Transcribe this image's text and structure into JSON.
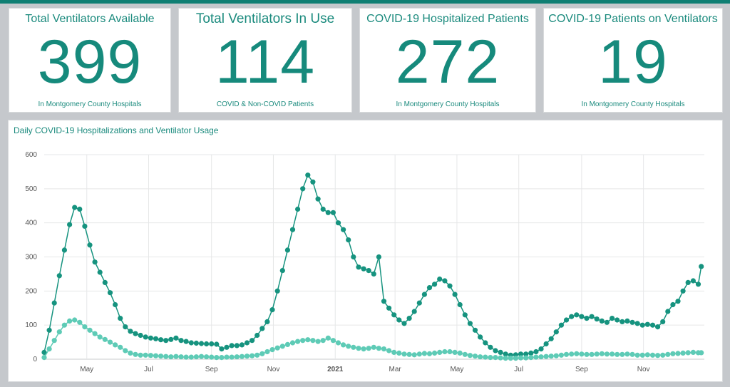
{
  "kpis": [
    {
      "title": "Total Ventilators Available",
      "value": "399",
      "subtitle": "In Montgomery County Hospitals"
    },
    {
      "title": "Total Ventilators In Use",
      "value": "114",
      "subtitle": "COVID & Non-COVID Patients"
    },
    {
      "title": "COVID-19 Hospitalized Patients",
      "value": "272",
      "subtitle": "In Montgomery County Hospitals"
    },
    {
      "title": "COVID-19 Patients on Ventilators",
      "value": "19",
      "subtitle": "In Montgomery County Hospitals"
    }
  ],
  "colors": {
    "accent": "#168a7c",
    "series_hospitalized": "#16937f",
    "series_ventilators": "#5ecbb6"
  },
  "chart_data": {
    "type": "line",
    "title": "Daily COVID-19 Hospitalizations and Ventilator Usage",
    "xlabel": "",
    "ylabel": "",
    "x_ticks": [
      "May",
      "Jul",
      "Sep",
      "Nov",
      "2021",
      "Mar",
      "May",
      "Jul",
      "Sep",
      "Nov"
    ],
    "y_ticks": [
      0,
      100,
      200,
      300,
      400,
      500,
      600
    ],
    "ylim": [
      0,
      600
    ],
    "xlim": [
      "2020-03-20",
      "2021-12-31"
    ],
    "grid": true,
    "legend": "none",
    "series": [
      {
        "points": [
          [
            "2020-03-20",
            20
          ],
          [
            "2020-03-25",
            85
          ],
          [
            "2020-03-30",
            165
          ],
          [
            "2020-04-04",
            245
          ],
          [
            "2020-04-09",
            320
          ],
          [
            "2020-04-14",
            395
          ],
          [
            "2020-04-19",
            445
          ],
          [
            "2020-04-24",
            440
          ],
          [
            "2020-04-29",
            390
          ],
          [
            "2020-05-04",
            335
          ],
          [
            "2020-05-09",
            285
          ],
          [
            "2020-05-14",
            255
          ],
          [
            "2020-05-19",
            225
          ],
          [
            "2020-05-24",
            195
          ],
          [
            "2020-05-29",
            160
          ],
          [
            "2020-06-03",
            120
          ],
          [
            "2020-06-08",
            95
          ],
          [
            "2020-06-13",
            82
          ],
          [
            "2020-06-18",
            75
          ],
          [
            "2020-06-23",
            70
          ],
          [
            "2020-06-28",
            65
          ],
          [
            "2020-07-03",
            62
          ],
          [
            "2020-07-08",
            60
          ],
          [
            "2020-07-13",
            57
          ],
          [
            "2020-07-18",
            55
          ],
          [
            "2020-07-23",
            58
          ],
          [
            "2020-07-28",
            62
          ],
          [
            "2020-08-02",
            55
          ],
          [
            "2020-08-07",
            52
          ],
          [
            "2020-08-12",
            48
          ],
          [
            "2020-08-17",
            47
          ],
          [
            "2020-08-22",
            46
          ],
          [
            "2020-08-27",
            45
          ],
          [
            "2020-09-01",
            45
          ],
          [
            "2020-09-06",
            44
          ],
          [
            "2020-09-11",
            30
          ],
          [
            "2020-09-16",
            35
          ],
          [
            "2020-09-21",
            40
          ],
          [
            "2020-09-26",
            40
          ],
          [
            "2020-10-01",
            42
          ],
          [
            "2020-10-06",
            48
          ],
          [
            "2020-10-11",
            55
          ],
          [
            "2020-10-16",
            70
          ],
          [
            "2020-10-21",
            90
          ],
          [
            "2020-10-26",
            110
          ],
          [
            "2020-10-31",
            145
          ],
          [
            "2020-11-05",
            200
          ],
          [
            "2020-11-10",
            260
          ],
          [
            "2020-11-15",
            320
          ],
          [
            "2020-11-20",
            380
          ],
          [
            "2020-11-25",
            440
          ],
          [
            "2020-11-30",
            500
          ],
          [
            "2020-12-05",
            540
          ],
          [
            "2020-12-10",
            520
          ],
          [
            "2020-12-15",
            470
          ],
          [
            "2020-12-20",
            440
          ],
          [
            "2020-12-25",
            430
          ],
          [
            "2020-12-30",
            430
          ],
          [
            "2021-01-04",
            400
          ],
          [
            "2021-01-09",
            380
          ],
          [
            "2021-01-14",
            350
          ],
          [
            "2021-01-19",
            300
          ],
          [
            "2021-01-24",
            270
          ],
          [
            "2021-01-29",
            265
          ],
          [
            "2021-02-03",
            260
          ],
          [
            "2021-02-08",
            250
          ],
          [
            "2021-02-13",
            300
          ],
          [
            "2021-02-18",
            170
          ],
          [
            "2021-02-23",
            150
          ],
          [
            "2021-02-28",
            130
          ],
          [
            "2021-03-05",
            115
          ],
          [
            "2021-03-10",
            105
          ],
          [
            "2021-03-15",
            120
          ],
          [
            "2021-03-20",
            140
          ],
          [
            "2021-03-25",
            165
          ],
          [
            "2021-03-30",
            190
          ],
          [
            "2021-04-04",
            210
          ],
          [
            "2021-04-09",
            220
          ],
          [
            "2021-04-14",
            235
          ],
          [
            "2021-04-19",
            230
          ],
          [
            "2021-04-24",
            215
          ],
          [
            "2021-04-29",
            190
          ],
          [
            "2021-05-04",
            160
          ],
          [
            "2021-05-09",
            130
          ],
          [
            "2021-05-14",
            105
          ],
          [
            "2021-05-19",
            85
          ],
          [
            "2021-05-24",
            65
          ],
          [
            "2021-05-29",
            48
          ],
          [
            "2021-06-03",
            35
          ],
          [
            "2021-06-08",
            25
          ],
          [
            "2021-06-13",
            20
          ],
          [
            "2021-06-18",
            15
          ],
          [
            "2021-06-23",
            12
          ],
          [
            "2021-06-28",
            13
          ],
          [
            "2021-07-03",
            15
          ],
          [
            "2021-07-08",
            15
          ],
          [
            "2021-07-13",
            18
          ],
          [
            "2021-07-18",
            22
          ],
          [
            "2021-07-23",
            30
          ],
          [
            "2021-07-28",
            45
          ],
          [
            "2021-08-02",
            60
          ],
          [
            "2021-08-07",
            80
          ],
          [
            "2021-08-12",
            100
          ],
          [
            "2021-08-17",
            115
          ],
          [
            "2021-08-22",
            125
          ],
          [
            "2021-08-27",
            130
          ],
          [
            "2021-09-01",
            125
          ],
          [
            "2021-09-06",
            120
          ],
          [
            "2021-09-11",
            125
          ],
          [
            "2021-09-16",
            118
          ],
          [
            "2021-09-21",
            112
          ],
          [
            "2021-09-26",
            108
          ],
          [
            "2021-10-01",
            120
          ],
          [
            "2021-10-06",
            115
          ],
          [
            "2021-10-11",
            110
          ],
          [
            "2021-10-16",
            112
          ],
          [
            "2021-10-21",
            108
          ],
          [
            "2021-10-26",
            105
          ],
          [
            "2021-10-31",
            100
          ],
          [
            "2021-11-05",
            102
          ],
          [
            "2021-11-10",
            100
          ],
          [
            "2021-11-15",
            95
          ],
          [
            "2021-11-20",
            110
          ],
          [
            "2021-11-25",
            140
          ],
          [
            "2021-11-30",
            160
          ],
          [
            "2021-12-05",
            170
          ],
          [
            "2021-12-10",
            200
          ],
          [
            "2021-12-15",
            225
          ],
          [
            "2021-12-20",
            230
          ],
          [
            "2021-12-25",
            220
          ],
          [
            "2021-12-28",
            272
          ]
        ]
      },
      {
        "points": [
          [
            "2020-03-20",
            5
          ],
          [
            "2020-03-25",
            30
          ],
          [
            "2020-03-30",
            55
          ],
          [
            "2020-04-04",
            80
          ],
          [
            "2020-04-09",
            100
          ],
          [
            "2020-04-14",
            112
          ],
          [
            "2020-04-19",
            115
          ],
          [
            "2020-04-24",
            108
          ],
          [
            "2020-04-29",
            95
          ],
          [
            "2020-05-04",
            85
          ],
          [
            "2020-05-09",
            75
          ],
          [
            "2020-05-14",
            65
          ],
          [
            "2020-05-19",
            58
          ],
          [
            "2020-05-24",
            50
          ],
          [
            "2020-05-29",
            42
          ],
          [
            "2020-06-03",
            35
          ],
          [
            "2020-06-08",
            25
          ],
          [
            "2020-06-13",
            18
          ],
          [
            "2020-06-18",
            14
          ],
          [
            "2020-06-23",
            12
          ],
          [
            "2020-06-28",
            12
          ],
          [
            "2020-07-03",
            11
          ],
          [
            "2020-07-08",
            10
          ],
          [
            "2020-07-13",
            9
          ],
          [
            "2020-07-18",
            8
          ],
          [
            "2020-07-23",
            7
          ],
          [
            "2020-07-28",
            8
          ],
          [
            "2020-08-02",
            7
          ],
          [
            "2020-08-07",
            6
          ],
          [
            "2020-08-12",
            6
          ],
          [
            "2020-08-17",
            7
          ],
          [
            "2020-08-22",
            8
          ],
          [
            "2020-08-27",
            7
          ],
          [
            "2020-09-01",
            6
          ],
          [
            "2020-09-06",
            5
          ],
          [
            "2020-09-11",
            5
          ],
          [
            "2020-09-16",
            6
          ],
          [
            "2020-09-21",
            6
          ],
          [
            "2020-09-26",
            7
          ],
          [
            "2020-10-01",
            8
          ],
          [
            "2020-10-06",
            9
          ],
          [
            "2020-10-11",
            10
          ],
          [
            "2020-10-16",
            12
          ],
          [
            "2020-10-21",
            16
          ],
          [
            "2020-10-26",
            22
          ],
          [
            "2020-10-31",
            28
          ],
          [
            "2020-11-05",
            33
          ],
          [
            "2020-11-10",
            38
          ],
          [
            "2020-11-15",
            43
          ],
          [
            "2020-11-20",
            48
          ],
          [
            "2020-11-25",
            52
          ],
          [
            "2020-11-30",
            55
          ],
          [
            "2020-12-05",
            57
          ],
          [
            "2020-12-10",
            55
          ],
          [
            "2020-12-15",
            52
          ],
          [
            "2020-12-20",
            55
          ],
          [
            "2020-12-25",
            62
          ],
          [
            "2020-12-30",
            55
          ],
          [
            "2021-01-04",
            48
          ],
          [
            "2021-01-09",
            42
          ],
          [
            "2021-01-14",
            38
          ],
          [
            "2021-01-19",
            35
          ],
          [
            "2021-01-24",
            32
          ],
          [
            "2021-01-29",
            30
          ],
          [
            "2021-02-03",
            32
          ],
          [
            "2021-02-08",
            35
          ],
          [
            "2021-02-13",
            32
          ],
          [
            "2021-02-18",
            30
          ],
          [
            "2021-02-23",
            25
          ],
          [
            "2021-02-28",
            20
          ],
          [
            "2021-03-05",
            18
          ],
          [
            "2021-03-10",
            15
          ],
          [
            "2021-03-15",
            14
          ],
          [
            "2021-03-20",
            13
          ],
          [
            "2021-03-25",
            15
          ],
          [
            "2021-03-30",
            17
          ],
          [
            "2021-04-04",
            16
          ],
          [
            "2021-04-09",
            18
          ],
          [
            "2021-04-14",
            20
          ],
          [
            "2021-04-19",
            22
          ],
          [
            "2021-04-24",
            22
          ],
          [
            "2021-04-29",
            20
          ],
          [
            "2021-05-04",
            18
          ],
          [
            "2021-05-09",
            14
          ],
          [
            "2021-05-14",
            11
          ],
          [
            "2021-05-19",
            9
          ],
          [
            "2021-05-24",
            7
          ],
          [
            "2021-05-29",
            6
          ],
          [
            "2021-06-03",
            5
          ],
          [
            "2021-06-08",
            5
          ],
          [
            "2021-06-13",
            4
          ],
          [
            "2021-06-18",
            3
          ],
          [
            "2021-06-23",
            3
          ],
          [
            "2021-06-28",
            3
          ],
          [
            "2021-07-03",
            4
          ],
          [
            "2021-07-08",
            4
          ],
          [
            "2021-07-13",
            5
          ],
          [
            "2021-07-18",
            6
          ],
          [
            "2021-07-23",
            7
          ],
          [
            "2021-07-28",
            8
          ],
          [
            "2021-08-02",
            9
          ],
          [
            "2021-08-07",
            10
          ],
          [
            "2021-08-12",
            12
          ],
          [
            "2021-08-17",
            14
          ],
          [
            "2021-08-22",
            15
          ],
          [
            "2021-08-27",
            16
          ],
          [
            "2021-09-01",
            15
          ],
          [
            "2021-09-06",
            14
          ],
          [
            "2021-09-11",
            14
          ],
          [
            "2021-09-16",
            15
          ],
          [
            "2021-09-21",
            16
          ],
          [
            "2021-09-26",
            15
          ],
          [
            "2021-10-01",
            15
          ],
          [
            "2021-10-06",
            14
          ],
          [
            "2021-10-11",
            14
          ],
          [
            "2021-10-16",
            15
          ],
          [
            "2021-10-21",
            14
          ],
          [
            "2021-10-26",
            12
          ],
          [
            "2021-10-31",
            12
          ],
          [
            "2021-11-05",
            13
          ],
          [
            "2021-11-10",
            12
          ],
          [
            "2021-11-15",
            11
          ],
          [
            "2021-11-20",
            12
          ],
          [
            "2021-11-25",
            14
          ],
          [
            "2021-11-30",
            16
          ],
          [
            "2021-12-05",
            17
          ],
          [
            "2021-12-10",
            18
          ],
          [
            "2021-12-15",
            19
          ],
          [
            "2021-12-20",
            20
          ],
          [
            "2021-12-25",
            19
          ],
          [
            "2021-12-28",
            19
          ]
        ]
      }
    ]
  }
}
